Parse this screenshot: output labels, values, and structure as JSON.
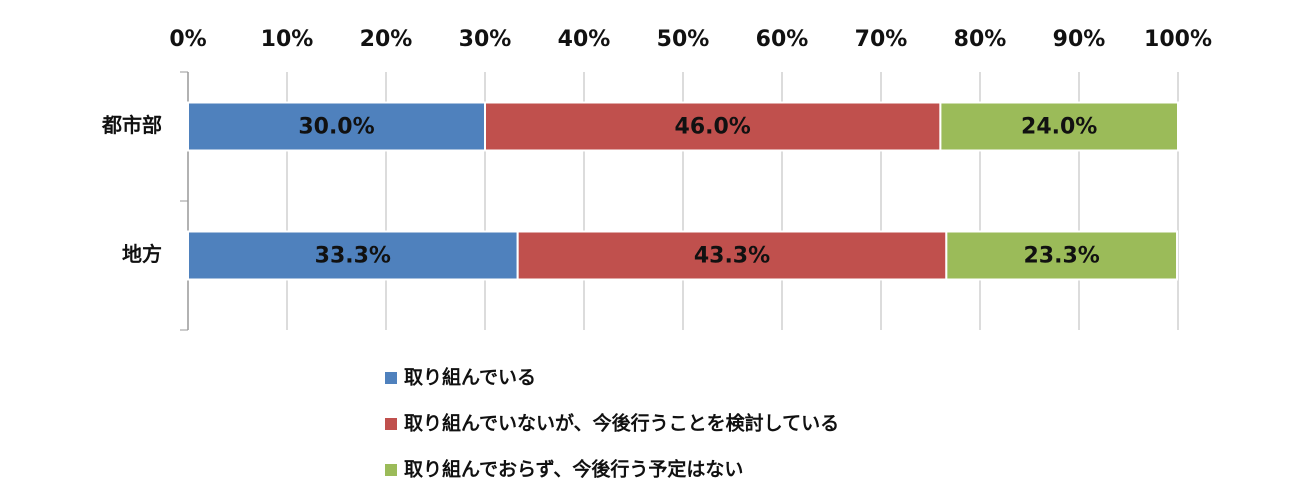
{
  "chart_data": {
    "type": "stacked-bar-horizontal",
    "categories": [
      "都市部",
      "地方"
    ],
    "series": [
      {
        "name": "取り組んでいる",
        "color": "#4f81bd",
        "values": [
          30.0,
          33.3
        ],
        "value_labels": [
          "30.0%",
          "33.3%"
        ]
      },
      {
        "name": "取り組んでいないが、今後行うことを検討している",
        "color": "#c0504d",
        "values": [
          46.0,
          43.3
        ],
        "value_labels": [
          "46.0%",
          "43.3%"
        ]
      },
      {
        "name": "取り組んでおらず、今後行う予定はない",
        "color": "#9bbb59",
        "values": [
          24.0,
          23.3
        ],
        "value_labels": [
          "24.0%",
          "23.3%"
        ]
      }
    ],
    "xlim": [
      0,
      100
    ],
    "xticks": [
      {
        "value": 0,
        "label": "0%"
      },
      {
        "value": 10,
        "label": "10%"
      },
      {
        "value": 20,
        "label": "20%"
      },
      {
        "value": 30,
        "label": "30%"
      },
      {
        "value": 40,
        "label": "40%"
      },
      {
        "value": 50,
        "label": "50%"
      },
      {
        "value": 60,
        "label": "60%"
      },
      {
        "value": 70,
        "label": "70%"
      },
      {
        "value": 80,
        "label": "80%"
      },
      {
        "value": 90,
        "label": "90%"
      },
      {
        "value": 100,
        "label": "100%"
      }
    ],
    "grid": true,
    "legend": "bottom"
  }
}
